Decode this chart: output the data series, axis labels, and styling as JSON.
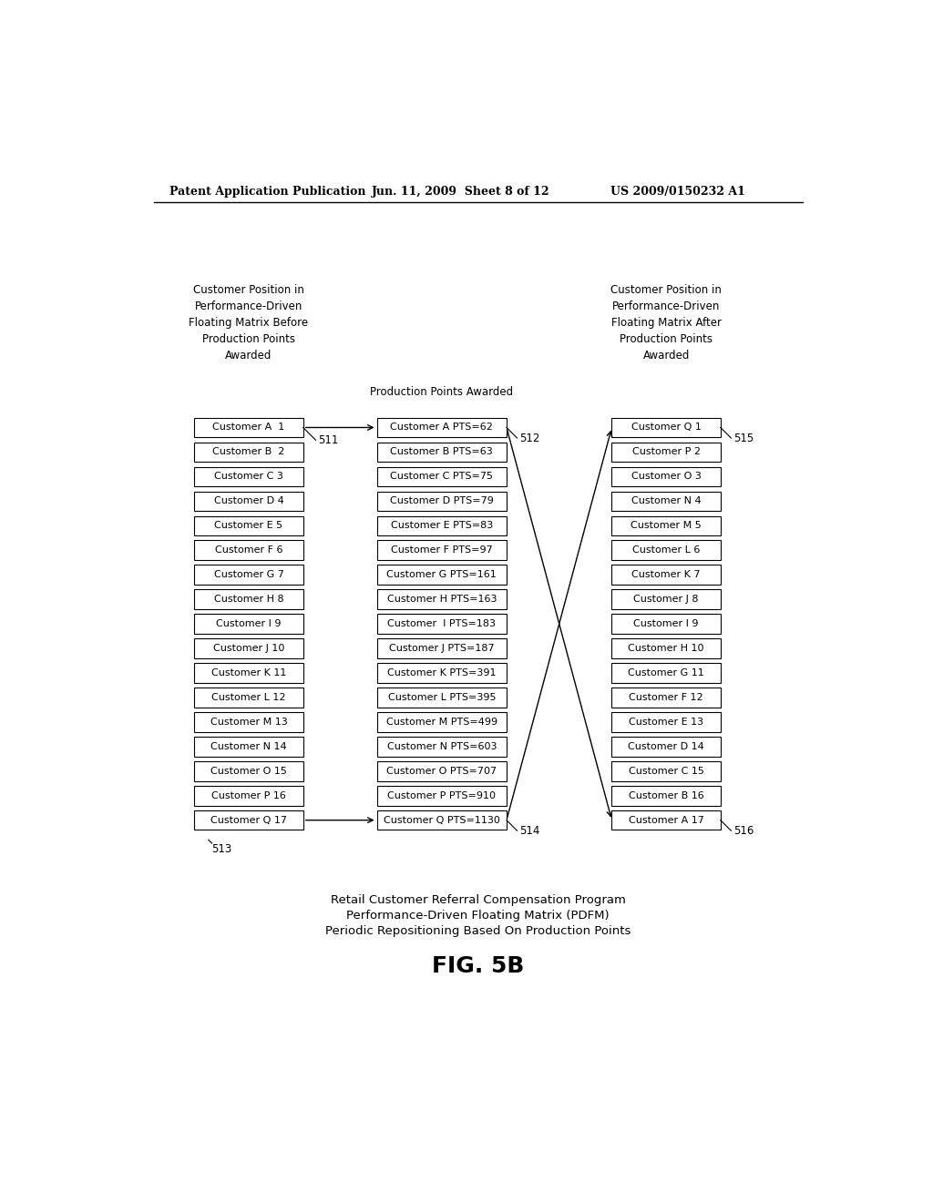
{
  "header_left": "Patent Application Publication",
  "header_mid": "Jun. 11, 2009  Sheet 8 of 12",
  "header_right": "US 2009/0150232 A1",
  "col1_header": "Customer Position in\nPerformance-Driven\nFloating Matrix Before\nProduction Points\nAwarded",
  "col2_header": "Production Points Awarded",
  "col3_header": "Customer Position in\nPerformance-Driven\nFloating Matrix After\nProduction Points\nAwarded",
  "col1_label": "511",
  "col2_top_label": "512",
  "col2_bot_label": "514",
  "col3_top_label": "515",
  "col3_bot_label": "516",
  "col1_bot_label": "513",
  "col1_boxes": [
    "Customer A  1",
    "Customer B  2",
    "Customer C 3",
    "Customer D 4",
    "Customer E 5",
    "Customer F 6",
    "Customer G 7",
    "Customer H 8",
    "Customer I 9",
    "Customer J 10",
    "Customer K 11",
    "Customer L 12",
    "Customer M 13",
    "Customer N 14",
    "Customer O 15",
    "Customer P 16",
    "Customer Q 17"
  ],
  "col2_boxes": [
    "Customer A PTS=62",
    "Customer B PTS=63",
    "Customer C PTS=75",
    "Customer D PTS=79",
    "Customer E PTS=83",
    "Customer F PTS=97",
    "Customer G PTS=161",
    "Customer H PTS=163",
    "Customer  I PTS=183",
    "Customer J PTS=187",
    "Customer K PTS=391",
    "Customer L PTS=395",
    "Customer M PTS=499",
    "Customer N PTS=603",
    "Customer O PTS=707",
    "Customer P PTS=910",
    "Customer Q PTS=1130"
  ],
  "col3_boxes": [
    "Customer Q 1",
    "Customer P 2",
    "Customer O 3",
    "Customer N 4",
    "Customer M 5",
    "Customer L 6",
    "Customer K 7",
    "Customer J 8",
    "Customer I 9",
    "Customer H 10",
    "Customer G 11",
    "Customer F 12",
    "Customer E 13",
    "Customer D 14",
    "Customer C 15",
    "Customer B 16",
    "Customer A 17"
  ],
  "caption_line1": "Retail Customer Referral Compensation Program",
  "caption_line2": "Performance-Driven Floating Matrix (PDFM)",
  "caption_line3": "Periodic Repositioning Based On Production Points",
  "fig_label": "FIG. 5B",
  "bg_color": "#ffffff",
  "text_color": "#000000"
}
